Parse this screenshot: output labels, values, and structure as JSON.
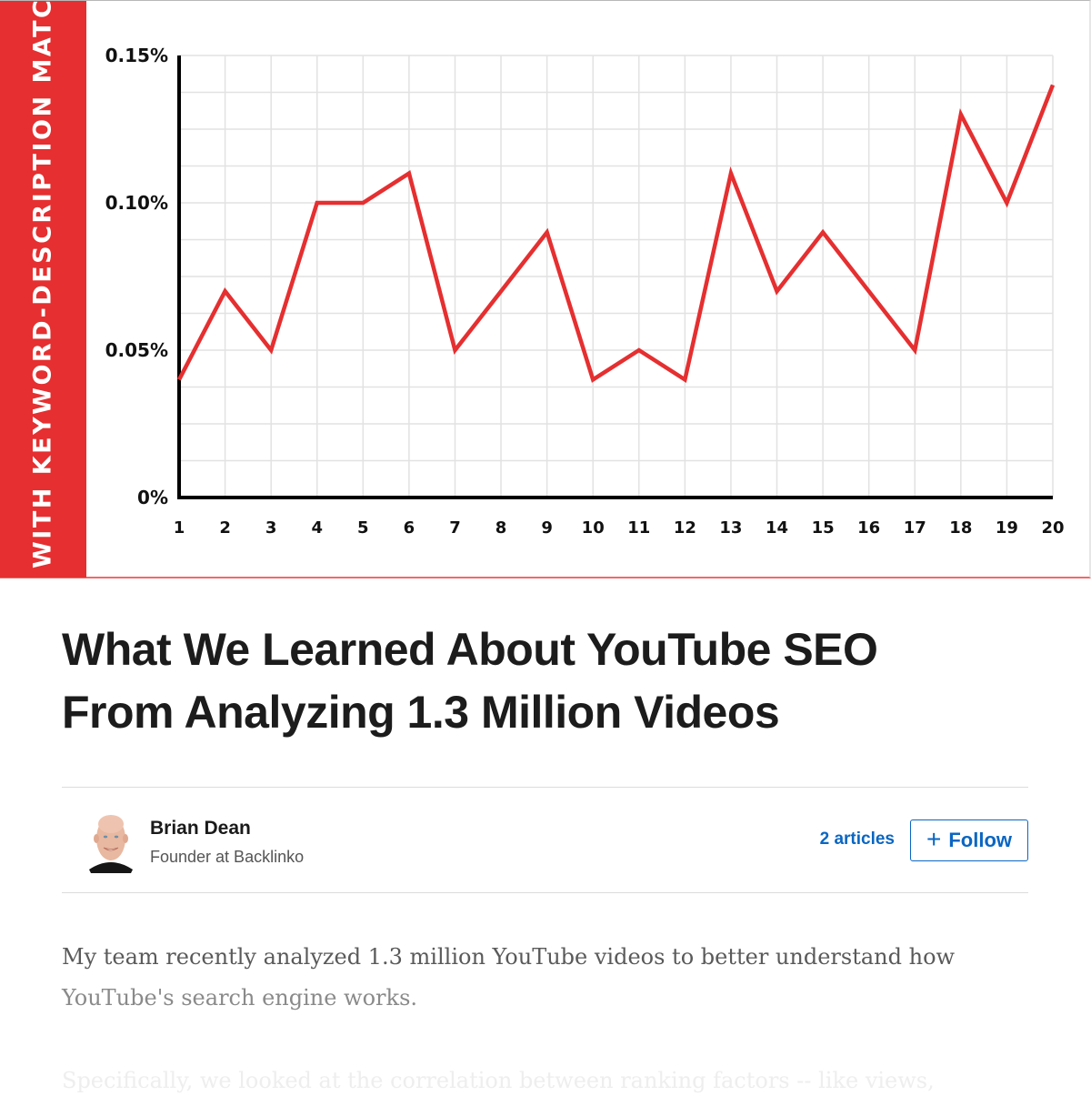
{
  "chart_data": {
    "type": "line",
    "title": "",
    "side_label": "WITH KEYWORD-DESCRIPTION MATC",
    "xlabel": "",
    "ylabel": "",
    "x": [
      1,
      2,
      3,
      4,
      5,
      6,
      7,
      8,
      9,
      10,
      11,
      12,
      13,
      14,
      15,
      16,
      17,
      18,
      19,
      20
    ],
    "categories": [
      "1",
      "2",
      "3",
      "4",
      "5",
      "6",
      "7",
      "8",
      "9",
      "10",
      "11",
      "12",
      "13",
      "14",
      "15",
      "16",
      "17",
      "18",
      "19",
      "20"
    ],
    "series": [
      {
        "name": "Keyword-description match",
        "color": "#e52f30",
        "values": [
          0.04,
          0.07,
          0.05,
          0.1,
          0.1,
          0.11,
          0.05,
          0.07,
          0.09,
          0.04,
          0.05,
          0.04,
          0.11,
          0.07,
          0.09,
          0.07,
          0.05,
          0.13,
          0.1,
          0.14
        ]
      }
    ],
    "y_ticks": [
      "0%",
      "0.05%",
      "0.10%",
      "0.15%"
    ],
    "ylim": [
      0,
      0.15
    ],
    "y_unit": "%",
    "grid": true,
    "legend": "none"
  },
  "colors": {
    "accent_red": "#e52f30",
    "link_blue": "#0a66c2",
    "title_text": "#1c1c1c"
  },
  "article": {
    "title_line1": "What We Learned About YouTube SEO",
    "title_line2": "From Analyzing 1.3 Million Videos"
  },
  "author": {
    "name": "Brian Dean",
    "title": "Founder at Backlinko",
    "articles_count_label": "2 articles",
    "follow_icon": "+",
    "follow_label": "Follow"
  },
  "body": {
    "p1_line1": "My team recently analyzed 1.3 million YouTube videos to better understand how",
    "p1_line2": "YouTube's search engine works.",
    "p2_line1": "Specifically, we looked at the correlation between ranking factors -- like views,"
  }
}
